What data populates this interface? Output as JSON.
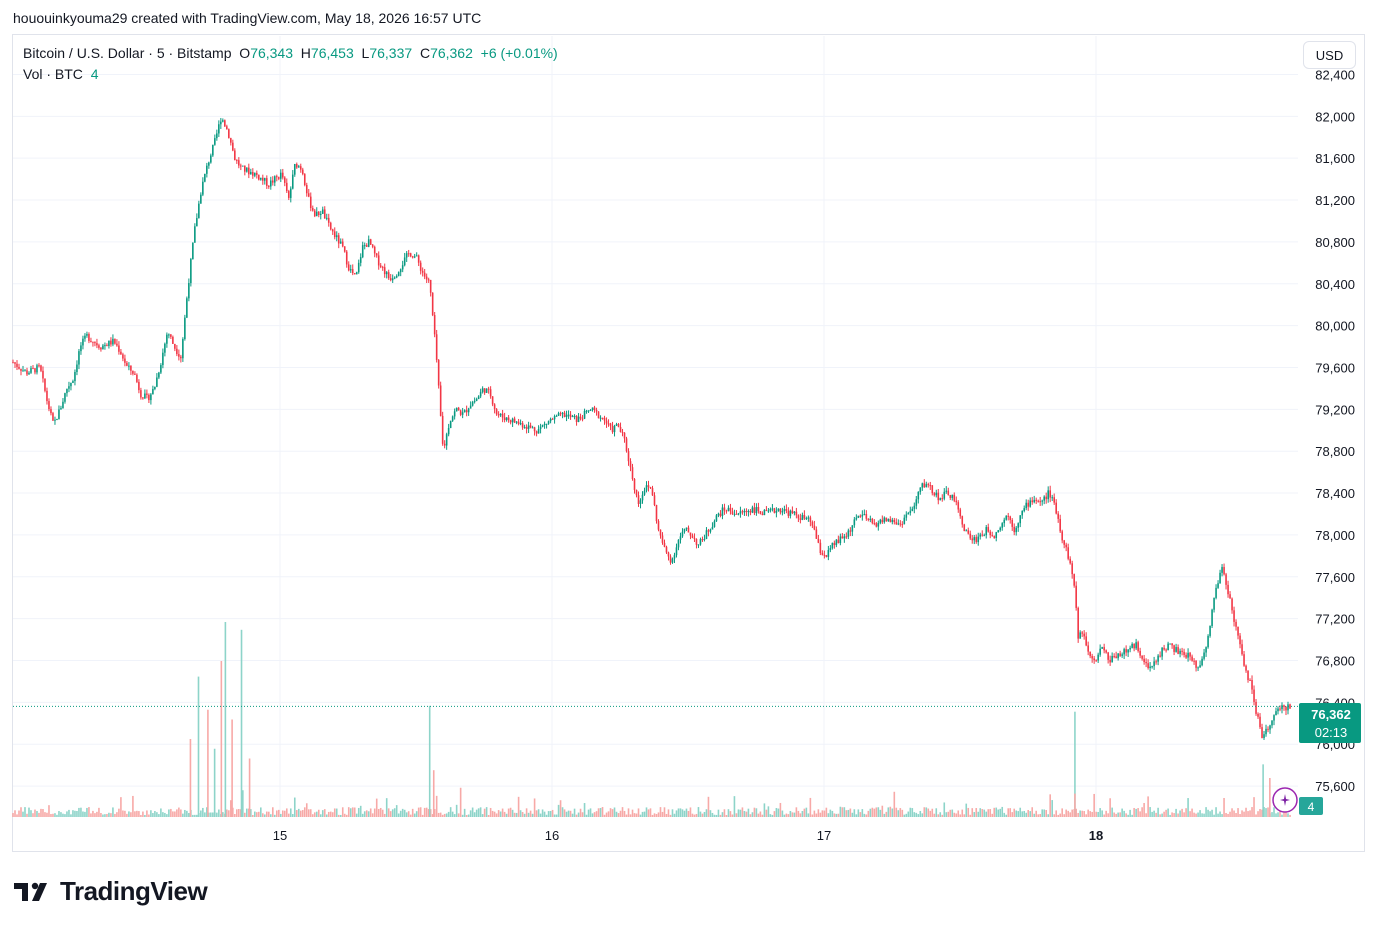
{
  "header": {
    "attribution": "hououinkyouma29 created with TradingView.com, May 18, 2026 16:57 UTC"
  },
  "legend": {
    "symbol": "Bitcoin / U.S. Dollar · 5 · Bitstamp",
    "open_label": "O",
    "open": "76,343",
    "high_label": "H",
    "high": "76,453",
    "low_label": "L",
    "low": "76,337",
    "close_label": "C",
    "close": "76,362",
    "change": "+6 (+0.01%)",
    "vol_label": "Vol · BTC",
    "vol_value": "4"
  },
  "currency_button": "USD",
  "price_badge": {
    "price": "76,362",
    "countdown": "02:13"
  },
  "volume_badge": "4",
  "brand": {
    "name": "TradingView"
  },
  "colors": {
    "up": "#089981",
    "down": "#f23645",
    "up_vol": "#8dd4c9",
    "down_vol": "#f7a9a7",
    "grid": "#f0f3fa"
  },
  "chart_data": {
    "type": "candlestick",
    "interval": "5",
    "exchange": "Bitstamp",
    "symbol": "BTC/USD",
    "y_ticks": [
      "75,600",
      "76,000",
      "76,400",
      "76,800",
      "77,200",
      "77,600",
      "78,000",
      "78,400",
      "78,800",
      "79,200",
      "79,600",
      "80,000",
      "80,400",
      "80,800",
      "81,200",
      "81,600",
      "82,000",
      "82,400"
    ],
    "ylim": [
      75400,
      82500
    ],
    "x_ticks": [
      "15",
      "16",
      "17",
      "18"
    ],
    "last_price": 76362,
    "price_path": [
      {
        "x": 0.0,
        "y": 79650
      },
      {
        "x": 0.01,
        "y": 79550
      },
      {
        "x": 0.02,
        "y": 79600
      },
      {
        "x": 0.025,
        "y": 79300
      },
      {
        "x": 0.03,
        "y": 79050
      },
      {
        "x": 0.035,
        "y": 79200
      },
      {
        "x": 0.04,
        "y": 79400
      },
      {
        "x": 0.045,
        "y": 79500
      },
      {
        "x": 0.05,
        "y": 79800
      },
      {
        "x": 0.055,
        "y": 79900
      },
      {
        "x": 0.065,
        "y": 79800
      },
      {
        "x": 0.075,
        "y": 79850
      },
      {
        "x": 0.08,
        "y": 79750
      },
      {
        "x": 0.085,
        "y": 79600
      },
      {
        "x": 0.09,
        "y": 79550
      },
      {
        "x": 0.095,
        "y": 79350
      },
      {
        "x": 0.1,
        "y": 79300
      },
      {
        "x": 0.105,
        "y": 79400
      },
      {
        "x": 0.11,
        "y": 79650
      },
      {
        "x": 0.115,
        "y": 79950
      },
      {
        "x": 0.12,
        "y": 79800
      },
      {
        "x": 0.125,
        "y": 79700
      },
      {
        "x": 0.13,
        "y": 80350
      },
      {
        "x": 0.135,
        "y": 80900
      },
      {
        "x": 0.14,
        "y": 81300
      },
      {
        "x": 0.145,
        "y": 81550
      },
      {
        "x": 0.15,
        "y": 81750
      },
      {
        "x": 0.155,
        "y": 82000
      },
      {
        "x": 0.16,
        "y": 81850
      },
      {
        "x": 0.165,
        "y": 81600
      },
      {
        "x": 0.17,
        "y": 81500
      },
      {
        "x": 0.18,
        "y": 81450
      },
      {
        "x": 0.19,
        "y": 81350
      },
      {
        "x": 0.2,
        "y": 81450
      },
      {
        "x": 0.205,
        "y": 81200
      },
      {
        "x": 0.21,
        "y": 81550
      },
      {
        "x": 0.215,
        "y": 81500
      },
      {
        "x": 0.22,
        "y": 81200
      },
      {
        "x": 0.225,
        "y": 81050
      },
      {
        "x": 0.23,
        "y": 81100
      },
      {
        "x": 0.235,
        "y": 80950
      },
      {
        "x": 0.24,
        "y": 80850
      },
      {
        "x": 0.245,
        "y": 80750
      },
      {
        "x": 0.25,
        "y": 80550
      },
      {
        "x": 0.255,
        "y": 80450
      },
      {
        "x": 0.26,
        "y": 80750
      },
      {
        "x": 0.265,
        "y": 80800
      },
      {
        "x": 0.27,
        "y": 80650
      },
      {
        "x": 0.275,
        "y": 80550
      },
      {
        "x": 0.28,
        "y": 80450
      },
      {
        "x": 0.285,
        "y": 80500
      },
      {
        "x": 0.29,
        "y": 80600
      },
      {
        "x": 0.295,
        "y": 80700
      },
      {
        "x": 0.3,
        "y": 80650
      },
      {
        "x": 0.305,
        "y": 80500
      },
      {
        "x": 0.31,
        "y": 80400
      },
      {
        "x": 0.315,
        "y": 79700
      },
      {
        "x": 0.318,
        "y": 79150
      },
      {
        "x": 0.32,
        "y": 78800
      },
      {
        "x": 0.325,
        "y": 79100
      },
      {
        "x": 0.33,
        "y": 79200
      },
      {
        "x": 0.335,
        "y": 79150
      },
      {
        "x": 0.34,
        "y": 79250
      },
      {
        "x": 0.345,
        "y": 79300
      },
      {
        "x": 0.35,
        "y": 79400
      },
      {
        "x": 0.355,
        "y": 79350
      },
      {
        "x": 0.36,
        "y": 79150
      },
      {
        "x": 0.37,
        "y": 79100
      },
      {
        "x": 0.38,
        "y": 79050
      },
      {
        "x": 0.39,
        "y": 79000
      },
      {
        "x": 0.4,
        "y": 79100
      },
      {
        "x": 0.41,
        "y": 79150
      },
      {
        "x": 0.42,
        "y": 79100
      },
      {
        "x": 0.43,
        "y": 79200
      },
      {
        "x": 0.44,
        "y": 79100
      },
      {
        "x": 0.445,
        "y": 79000
      },
      {
        "x": 0.45,
        "y": 79050
      },
      {
        "x": 0.455,
        "y": 78900
      },
      {
        "x": 0.46,
        "y": 78600
      },
      {
        "x": 0.465,
        "y": 78300
      },
      {
        "x": 0.47,
        "y": 78450
      },
      {
        "x": 0.475,
        "y": 78450
      },
      {
        "x": 0.48,
        "y": 78050
      },
      {
        "x": 0.485,
        "y": 77850
      },
      {
        "x": 0.49,
        "y": 77750
      },
      {
        "x": 0.495,
        "y": 77950
      },
      {
        "x": 0.5,
        "y": 78050
      },
      {
        "x": 0.505,
        "y": 78000
      },
      {
        "x": 0.51,
        "y": 77900
      },
      {
        "x": 0.515,
        "y": 78000
      },
      {
        "x": 0.52,
        "y": 78100
      },
      {
        "x": 0.525,
        "y": 78200
      },
      {
        "x": 0.53,
        "y": 78250
      },
      {
        "x": 0.54,
        "y": 78200
      },
      {
        "x": 0.55,
        "y": 78250
      },
      {
        "x": 0.56,
        "y": 78200
      },
      {
        "x": 0.57,
        "y": 78250
      },
      {
        "x": 0.58,
        "y": 78200
      },
      {
        "x": 0.59,
        "y": 78150
      },
      {
        "x": 0.595,
        "y": 78100
      },
      {
        "x": 0.6,
        "y": 77850
      },
      {
        "x": 0.605,
        "y": 77800
      },
      {
        "x": 0.61,
        "y": 77900
      },
      {
        "x": 0.615,
        "y": 77950
      },
      {
        "x": 0.62,
        "y": 78000
      },
      {
        "x": 0.625,
        "y": 78100
      },
      {
        "x": 0.63,
        "y": 78200
      },
      {
        "x": 0.64,
        "y": 78100
      },
      {
        "x": 0.65,
        "y": 78150
      },
      {
        "x": 0.66,
        "y": 78100
      },
      {
        "x": 0.665,
        "y": 78200
      },
      {
        "x": 0.67,
        "y": 78250
      },
      {
        "x": 0.675,
        "y": 78450
      },
      {
        "x": 0.68,
        "y": 78500
      },
      {
        "x": 0.685,
        "y": 78400
      },
      {
        "x": 0.69,
        "y": 78350
      },
      {
        "x": 0.695,
        "y": 78400
      },
      {
        "x": 0.7,
        "y": 78350
      },
      {
        "x": 0.705,
        "y": 78150
      },
      {
        "x": 0.71,
        "y": 78000
      },
      {
        "x": 0.715,
        "y": 77950
      },
      {
        "x": 0.72,
        "y": 78000
      },
      {
        "x": 0.725,
        "y": 78050
      },
      {
        "x": 0.73,
        "y": 78000
      },
      {
        "x": 0.735,
        "y": 78100
      },
      {
        "x": 0.74,
        "y": 78200
      },
      {
        "x": 0.745,
        "y": 78050
      },
      {
        "x": 0.75,
        "y": 78200
      },
      {
        "x": 0.755,
        "y": 78300
      },
      {
        "x": 0.76,
        "y": 78350
      },
      {
        "x": 0.765,
        "y": 78300
      },
      {
        "x": 0.77,
        "y": 78400
      },
      {
        "x": 0.775,
        "y": 78300
      },
      {
        "x": 0.78,
        "y": 78000
      },
      {
        "x": 0.785,
        "y": 77800
      },
      {
        "x": 0.79,
        "y": 77500
      },
      {
        "x": 0.792,
        "y": 77000
      },
      {
        "x": 0.795,
        "y": 77100
      },
      {
        "x": 0.8,
        "y": 76900
      },
      {
        "x": 0.805,
        "y": 76800
      },
      {
        "x": 0.81,
        "y": 76950
      },
      {
        "x": 0.815,
        "y": 76800
      },
      {
        "x": 0.82,
        "y": 76850
      },
      {
        "x": 0.83,
        "y": 76900
      },
      {
        "x": 0.835,
        "y": 76950
      },
      {
        "x": 0.84,
        "y": 76850
      },
      {
        "x": 0.845,
        "y": 76700
      },
      {
        "x": 0.85,
        "y": 76800
      },
      {
        "x": 0.855,
        "y": 76900
      },
      {
        "x": 0.86,
        "y": 76950
      },
      {
        "x": 0.865,
        "y": 76900
      },
      {
        "x": 0.87,
        "y": 76850
      },
      {
        "x": 0.875,
        "y": 76850
      },
      {
        "x": 0.88,
        "y": 76750
      },
      {
        "x": 0.885,
        "y": 76800
      },
      {
        "x": 0.89,
        "y": 77100
      },
      {
        "x": 0.895,
        "y": 77500
      },
      {
        "x": 0.9,
        "y": 77700
      },
      {
        "x": 0.905,
        "y": 77400
      },
      {
        "x": 0.91,
        "y": 77100
      },
      {
        "x": 0.915,
        "y": 76800
      },
      {
        "x": 0.92,
        "y": 76600
      },
      {
        "x": 0.925,
        "y": 76300
      },
      {
        "x": 0.928,
        "y": 76150
      },
      {
        "x": 0.93,
        "y": 76050
      },
      {
        "x": 0.935,
        "y": 76200
      },
      {
        "x": 0.94,
        "y": 76300
      },
      {
        "x": 0.945,
        "y": 76350
      },
      {
        "x": 0.95,
        "y": 76362
      }
    ],
    "volume_spikes": [
      {
        "x": 0.132,
        "v": 0.4
      },
      {
        "x": 0.138,
        "v": 0.72
      },
      {
        "x": 0.145,
        "v": 0.55
      },
      {
        "x": 0.15,
        "v": 0.35
      },
      {
        "x": 0.155,
        "v": 0.8
      },
      {
        "x": 0.158,
        "v": 1.0
      },
      {
        "x": 0.163,
        "v": 0.5
      },
      {
        "x": 0.17,
        "v": 0.96
      },
      {
        "x": 0.176,
        "v": 0.3
      },
      {
        "x": 0.31,
        "v": 0.57
      },
      {
        "x": 0.313,
        "v": 0.24
      },
      {
        "x": 0.79,
        "v": 0.54
      },
      {
        "x": 0.79,
        "v": 0.12
      },
      {
        "x": 0.93,
        "v": 0.27
      },
      {
        "x": 0.935,
        "v": 0.2
      }
    ]
  }
}
